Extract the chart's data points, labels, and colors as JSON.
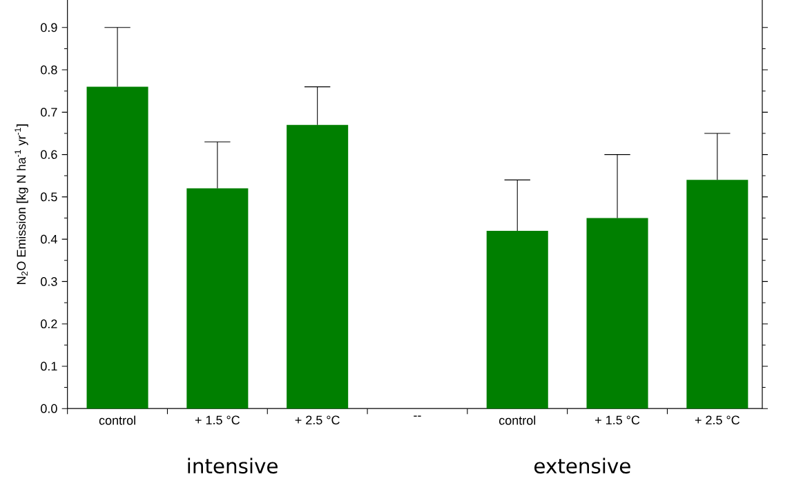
{
  "chart_data": {
    "type": "bar",
    "ylabel": "N$_{2}$O Emission [kg N ha$^{-1}$ yr$^{-1}$]",
    "categories": [
      "control",
      "+ 1.5 °C",
      "+ 2.5 °C",
      "--",
      "control",
      "+ 1.5 °C",
      "+ 2.5 °C"
    ],
    "values": [
      0.76,
      0.52,
      0.67,
      null,
      0.42,
      0.45,
      0.54
    ],
    "errors": [
      [
        0.76,
        0.9
      ],
      [
        0.52,
        0.63
      ],
      [
        0.67,
        0.76
      ],
      null,
      [
        0.42,
        0.54
      ],
      [
        0.45,
        0.6
      ],
      [
        0.54,
        0.65
      ]
    ],
    "color": "#007f00",
    "ylim": [
      0,
      0.965
    ],
    "yticks": [
      {
        "value": 0,
        "label": "0.0"
      },
      0.1,
      0.2,
      0.3,
      0.4,
      0.5,
      0.6,
      0.7,
      0.8,
      0.9
    ],
    "annotations": [
      "intensive",
      "extensive"
    ],
    "grid": false
  }
}
